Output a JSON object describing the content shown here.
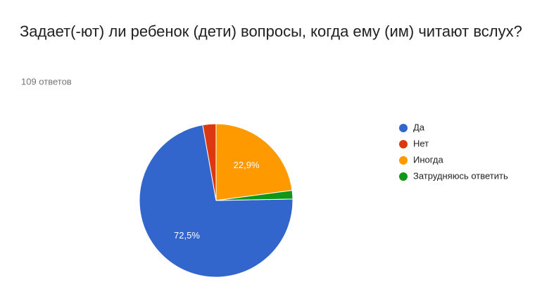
{
  "chart_data": {
    "type": "pie",
    "title": "Задает(-ют) ли ребенок (дети) вопросы, когда ему (им) читают вслух?",
    "subtitle": "109 ответов",
    "categories": [
      "Да",
      "Нет",
      "Иногда",
      "Затрудняюсь ответить"
    ],
    "values": [
      72.5,
      2.8,
      22.9,
      1.8
    ],
    "value_labels": [
      "72,5%",
      null,
      "22,9%",
      null
    ],
    "colors": [
      "#3366cc",
      "#dc3912",
      "#ff9900",
      "#109618"
    ],
    "legend": "right"
  }
}
